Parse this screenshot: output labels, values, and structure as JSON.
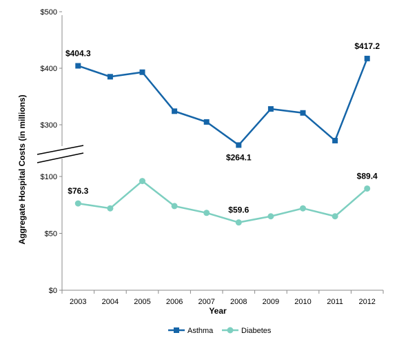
{
  "chart_data": {
    "type": "line",
    "title": "",
    "xlabel": "Year",
    "ylabel": "Aggregate Hospital Costs (in millions)",
    "categories": [
      "2003",
      "2004",
      "2005",
      "2006",
      "2007",
      "2008",
      "2009",
      "2010",
      "2011",
      "2012"
    ],
    "y_axis_segments": [
      {
        "range": [
          0,
          100
        ],
        "tick_values": [
          0,
          50,
          100
        ],
        "tick_labels": [
          "$0",
          "$50",
          "$100"
        ]
      },
      {
        "range": [
          270,
          500
        ],
        "tick_values": [
          300,
          400,
          500
        ],
        "tick_labels": [
          "$300",
          "$400",
          "$500"
        ]
      }
    ],
    "axis_break": true,
    "grid": false,
    "legend_position": "bottom",
    "series": [
      {
        "name": "Asthma",
        "color": "#1565a8",
        "marker": "square",
        "values": [
          404.3,
          385,
          393,
          324,
          305,
          264.1,
          328,
          321,
          272,
          417.2
        ],
        "point_labels": [
          {
            "index": 0,
            "text": "$404.3",
            "position": "above"
          },
          {
            "index": 5,
            "text": "$264.1",
            "position": "below"
          },
          {
            "index": 9,
            "text": "$417.2",
            "position": "above"
          }
        ]
      },
      {
        "name": "Diabetes",
        "color": "#7dcfc0",
        "marker": "circle",
        "values": [
          76.3,
          72,
          96,
          74,
          68,
          59.6,
          65,
          72,
          65,
          89.4
        ],
        "point_labels": [
          {
            "index": 0,
            "text": "$76.3",
            "position": "above"
          },
          {
            "index": 5,
            "text": "$59.6",
            "position": "above"
          },
          {
            "index": 9,
            "text": "$89.4",
            "position": "above"
          }
        ]
      }
    ]
  }
}
